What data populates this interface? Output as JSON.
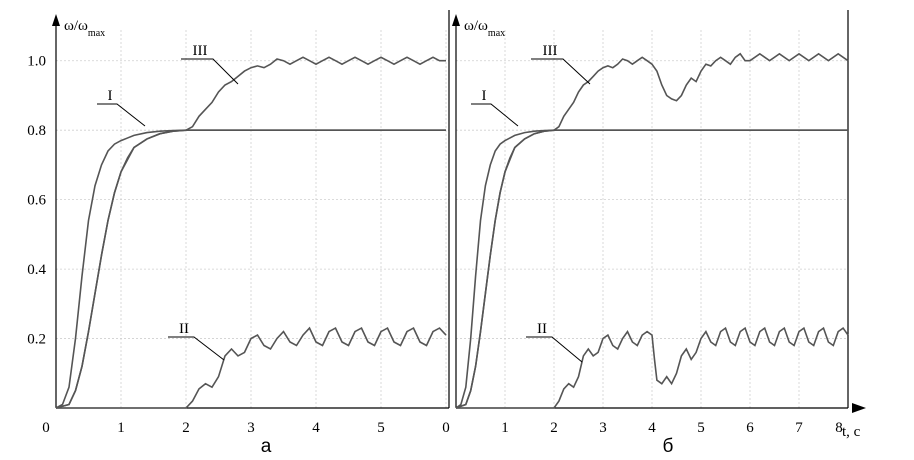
{
  "chart_data": [
    {
      "type": "line",
      "panel_label": "а",
      "ylabel": "ω/ω",
      "ylabel_sub": "max",
      "xlabel": "",
      "xlim": [
        0,
        6
      ],
      "ylim": [
        0,
        1.1
      ],
      "xticks": [
        "0",
        "1",
        "2",
        "3",
        "4",
        "5"
      ],
      "yticks": [
        "0.2",
        "0.4",
        "0.6",
        "0.8",
        "1.0"
      ],
      "grid": true,
      "series": [
        {
          "name": "I",
          "x": [
            0,
            0.1,
            0.2,
            0.3,
            0.4,
            0.5,
            0.6,
            0.7,
            0.8,
            0.9,
            1.0,
            1.2,
            1.4,
            1.6,
            1.8,
            2.0,
            3.0,
            4.0,
            5.0,
            6.0
          ],
          "y": [
            0,
            0.01,
            0.06,
            0.2,
            0.38,
            0.54,
            0.64,
            0.7,
            0.74,
            0.76,
            0.77,
            0.785,
            0.793,
            0.797,
            0.799,
            0.8,
            0.8,
            0.8,
            0.8,
            0.8
          ]
        },
        {
          "name": "I",
          "x": [
            0,
            0.2,
            0.3,
            0.4,
            0.5,
            0.6,
            0.7,
            0.8,
            0.9,
            1.0,
            1.1,
            1.2,
            1.4,
            1.6,
            1.8,
            2.0,
            3.0,
            4.0,
            5.0,
            6.0
          ],
          "y": [
            0,
            0.01,
            0.05,
            0.12,
            0.22,
            0.33,
            0.44,
            0.54,
            0.62,
            0.68,
            0.72,
            0.75,
            0.775,
            0.79,
            0.797,
            0.8,
            0.8,
            0.8,
            0.8,
            0.8
          ]
        },
        {
          "name": "II",
          "x": [
            0,
            0.5,
            1.0,
            1.5,
            2.0,
            2.1,
            2.2,
            2.3,
            2.4,
            2.5,
            2.6,
            2.7,
            2.8,
            2.9,
            3.0,
            3.1,
            3.2,
            3.3,
            3.4,
            3.5,
            3.6,
            3.7,
            3.8,
            3.9,
            4.0,
            4.1,
            4.2,
            4.3,
            4.4,
            4.5,
            4.6,
            4.7,
            4.8,
            4.9,
            5.0,
            5.1,
            5.2,
            5.3,
            5.4,
            5.5,
            5.6,
            5.7,
            5.8,
            5.9,
            6.0
          ],
          "y": [
            0.0,
            0.0,
            0.0,
            0.0,
            0.0,
            0.02,
            0.055,
            0.07,
            0.06,
            0.09,
            0.15,
            0.17,
            0.15,
            0.16,
            0.2,
            0.21,
            0.18,
            0.17,
            0.2,
            0.22,
            0.19,
            0.18,
            0.21,
            0.23,
            0.19,
            0.18,
            0.22,
            0.23,
            0.19,
            0.18,
            0.22,
            0.23,
            0.19,
            0.18,
            0.22,
            0.23,
            0.19,
            0.18,
            0.22,
            0.23,
            0.19,
            0.18,
            0.22,
            0.23,
            0.21
          ]
        },
        {
          "name": "III",
          "x": [
            0,
            0.2,
            0.3,
            0.4,
            0.5,
            0.6,
            0.7,
            0.8,
            0.9,
            1.0,
            1.2,
            1.4,
            1.6,
            1.8,
            2.0,
            2.1,
            2.2,
            2.3,
            2.4,
            2.5,
            2.6,
            2.7,
            2.8,
            2.9,
            3.0,
            3.1,
            3.2,
            3.3,
            3.4,
            3.5,
            3.6,
            3.7,
            3.8,
            3.9,
            4.0,
            4.1,
            4.2,
            4.3,
            4.4,
            4.5,
            4.6,
            4.7,
            4.8,
            4.9,
            5.0,
            5.1,
            5.2,
            5.3,
            5.4,
            5.5,
            5.6,
            5.7,
            5.8,
            5.9,
            6.0
          ],
          "y": [
            0,
            0.01,
            0.05,
            0.12,
            0.22,
            0.33,
            0.44,
            0.54,
            0.62,
            0.68,
            0.75,
            0.775,
            0.79,
            0.797,
            0.8,
            0.81,
            0.84,
            0.86,
            0.88,
            0.91,
            0.93,
            0.94,
            0.955,
            0.97,
            0.98,
            0.985,
            0.98,
            0.99,
            1.005,
            1.0,
            0.99,
            1.0,
            1.01,
            1.0,
            0.99,
            1.0,
            1.01,
            1.0,
            0.99,
            1.0,
            1.01,
            1.0,
            0.99,
            1.0,
            1.01,
            1.0,
            0.99,
            1.0,
            1.01,
            1.0,
            0.99,
            1.0,
            1.01,
            1.0,
            1.0
          ]
        }
      ]
    },
    {
      "type": "line",
      "panel_label": "б",
      "ylabel": "ω/ω",
      "ylabel_sub": "max",
      "xlabel": "t, c",
      "xlim": [
        0,
        8
      ],
      "ylim": [
        0,
        1.1
      ],
      "xticks": [
        "0",
        "1",
        "2",
        "3",
        "4",
        "5",
        "6",
        "7",
        "8"
      ],
      "yticks": [],
      "grid": true,
      "series": [
        {
          "name": "I",
          "x": [
            0,
            0.1,
            0.2,
            0.3,
            0.4,
            0.5,
            0.6,
            0.7,
            0.8,
            0.9,
            1.0,
            1.2,
            1.4,
            1.6,
            1.8,
            2.0,
            3.0,
            4.0,
            5.0,
            6.0,
            7.0,
            8.0
          ],
          "y": [
            0,
            0.01,
            0.06,
            0.2,
            0.38,
            0.54,
            0.64,
            0.7,
            0.74,
            0.76,
            0.77,
            0.785,
            0.793,
            0.797,
            0.799,
            0.8,
            0.8,
            0.8,
            0.8,
            0.8,
            0.8,
            0.8
          ]
        },
        {
          "name": "I",
          "x": [
            0,
            0.2,
            0.3,
            0.4,
            0.5,
            0.6,
            0.7,
            0.8,
            0.9,
            1.0,
            1.1,
            1.2,
            1.4,
            1.6,
            1.8,
            2.0,
            3.0,
            4.0,
            5.0,
            6.0,
            7.0,
            8.0
          ],
          "y": [
            0,
            0.01,
            0.05,
            0.12,
            0.22,
            0.33,
            0.44,
            0.54,
            0.62,
            0.68,
            0.72,
            0.75,
            0.775,
            0.79,
            0.797,
            0.8,
            0.8,
            0.8,
            0.8,
            0.8,
            0.8,
            0.8
          ]
        },
        {
          "name": "II",
          "x": [
            0,
            1.0,
            2.0,
            2.1,
            2.2,
            2.3,
            2.4,
            2.5,
            2.6,
            2.7,
            2.8,
            2.9,
            3.0,
            3.1,
            3.2,
            3.3,
            3.4,
            3.5,
            3.6,
            3.7,
            3.8,
            3.9,
            4.0,
            4.05,
            4.1,
            4.2,
            4.3,
            4.4,
            4.5,
            4.6,
            4.7,
            4.8,
            4.9,
            5.0,
            5.1,
            5.2,
            5.3,
            5.4,
            5.5,
            5.6,
            5.7,
            5.8,
            5.9,
            6.0,
            6.1,
            6.2,
            6.3,
            6.4,
            6.5,
            6.6,
            6.7,
            6.8,
            6.9,
            7.0,
            7.1,
            7.2,
            7.3,
            7.4,
            7.5,
            7.6,
            7.7,
            7.8,
            7.9,
            8.0
          ],
          "y": [
            0,
            0,
            0,
            0.02,
            0.055,
            0.07,
            0.06,
            0.09,
            0.15,
            0.17,
            0.15,
            0.16,
            0.2,
            0.21,
            0.18,
            0.17,
            0.2,
            0.22,
            0.19,
            0.18,
            0.21,
            0.22,
            0.21,
            0.14,
            0.08,
            0.07,
            0.09,
            0.07,
            0.1,
            0.15,
            0.17,
            0.14,
            0.16,
            0.2,
            0.22,
            0.19,
            0.18,
            0.22,
            0.23,
            0.19,
            0.18,
            0.22,
            0.23,
            0.19,
            0.18,
            0.22,
            0.23,
            0.19,
            0.18,
            0.22,
            0.23,
            0.19,
            0.18,
            0.22,
            0.23,
            0.19,
            0.18,
            0.22,
            0.23,
            0.19,
            0.18,
            0.22,
            0.23,
            0.21
          ]
        },
        {
          "name": "III",
          "x": [
            0,
            0.2,
            0.3,
            0.4,
            0.5,
            0.6,
            0.7,
            0.8,
            0.9,
            1.0,
            1.2,
            1.4,
            1.6,
            1.8,
            2.0,
            2.1,
            2.2,
            2.3,
            2.4,
            2.5,
            2.6,
            2.7,
            2.8,
            2.9,
            3.0,
            3.1,
            3.2,
            3.3,
            3.4,
            3.5,
            3.6,
            3.7,
            3.8,
            3.9,
            4.0,
            4.1,
            4.2,
            4.3,
            4.4,
            4.5,
            4.6,
            4.7,
            4.8,
            4.9,
            5.0,
            5.1,
            5.2,
            5.3,
            5.4,
            5.5,
            5.6,
            5.7,
            5.8,
            5.9,
            6.0,
            6.2,
            6.4,
            6.6,
            6.8,
            7.0,
            7.2,
            7.4,
            7.6,
            7.8,
            8.0
          ],
          "y": [
            0,
            0.01,
            0.05,
            0.12,
            0.22,
            0.33,
            0.44,
            0.54,
            0.62,
            0.68,
            0.75,
            0.775,
            0.79,
            0.797,
            0.8,
            0.81,
            0.84,
            0.86,
            0.88,
            0.91,
            0.93,
            0.94,
            0.955,
            0.97,
            0.98,
            0.985,
            0.98,
            0.99,
            1.005,
            1.0,
            0.99,
            1.0,
            1.01,
            1.0,
            0.99,
            0.97,
            0.93,
            0.9,
            0.89,
            0.885,
            0.9,
            0.93,
            0.95,
            0.94,
            0.97,
            0.99,
            0.985,
            1.0,
            1.01,
            1.0,
            0.99,
            1.01,
            1.02,
            1.0,
            1.0,
            1.02,
            1.0,
            1.02,
            1.0,
            1.02,
            1.0,
            1.02,
            1.0,
            1.02,
            1.0
          ]
        }
      ]
    }
  ]
}
